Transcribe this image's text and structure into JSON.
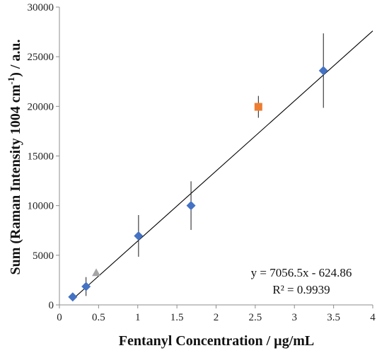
{
  "chart_data": {
    "type": "scatter",
    "xlabel": "Fentanyl Concentration / µg/mL",
    "ylabel_parts": {
      "before": "Sum (Raman Intensity 1004 cm",
      "sup": "-1",
      "after": ") / a.u."
    },
    "xlim": [
      0,
      4
    ],
    "ylim": [
      0,
      30000
    ],
    "x_ticks": [
      0,
      0.5,
      1,
      1.5,
      2,
      2.5,
      3,
      3.5,
      4
    ],
    "x_tick_labels": [
      "0",
      "0.5",
      "1",
      "1.5",
      "2",
      "2.5",
      "3",
      "3.5",
      "4"
    ],
    "y_ticks": [
      0,
      5000,
      10000,
      15000,
      20000,
      25000,
      30000
    ],
    "y_tick_labels": [
      "0",
      "5000",
      "10000",
      "15000",
      "20000",
      "25000",
      "30000"
    ],
    "grid": false,
    "series": [
      {
        "marker": "diamond",
        "color": "#4472C4",
        "points": [
          {
            "x": 0.17,
            "y": 800,
            "err": 300
          },
          {
            "x": 0.34,
            "y": 1850,
            "err": 950
          },
          {
            "x": 1.01,
            "y": 6950,
            "err": 2100
          },
          {
            "x": 1.68,
            "y": 10000,
            "err": 2450
          },
          {
            "x": 3.37,
            "y": 23600,
            "err": 3750
          }
        ]
      },
      {
        "marker": "square",
        "color": "#ED7D31",
        "points": [
          {
            "x": 2.54,
            "y": 19950,
            "err": 1100
          }
        ]
      },
      {
        "marker": "triangle",
        "color": "#A5A5A5",
        "points": [
          {
            "x": 0.47,
            "y": 3250,
            "err": 0
          }
        ]
      }
    ],
    "trendline": {
      "slope": 7056.5,
      "intercept": -624.86,
      "x_range": [
        0.17,
        4
      ],
      "color": "#000000"
    },
    "annotations": {
      "equation": "y = 7056.5x - 624.86",
      "r2": "R² = 0.9939"
    }
  }
}
